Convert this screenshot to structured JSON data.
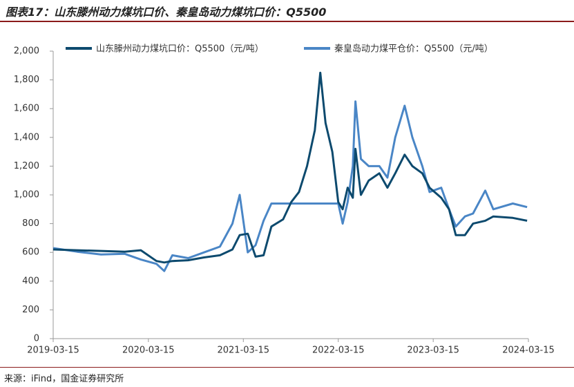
{
  "chart_data": {
    "type": "line",
    "title": "图表17：山东滕州动力煤坑口价、秦皇岛动力煤坑口价：Q5500",
    "source": "来源：iFind，国金证券研究所",
    "x": [
      "2019-03-15",
      "2019-06-15",
      "2019-09-15",
      "2019-12-15",
      "2020-02-15",
      "2020-04-15",
      "2020-05-15",
      "2020-06-15",
      "2020-08-15",
      "2020-10-15",
      "2020-12-15",
      "2021-02-01",
      "2021-03-01",
      "2021-04-01",
      "2021-05-01",
      "2021-06-01",
      "2021-07-01",
      "2021-08-15",
      "2021-09-15",
      "2021-10-15",
      "2021-11-15",
      "2021-12-15",
      "2022-01-05",
      "2022-01-25",
      "2022-02-20",
      "2022-03-15",
      "2022-04-01",
      "2022-04-20",
      "2022-05-10",
      "2022-05-20",
      "2022-06-10",
      "2022-07-10",
      "2022-08-20",
      "2022-09-20",
      "2022-10-20",
      "2022-11-25",
      "2022-12-25",
      "2023-02-01",
      "2023-03-01",
      "2023-04-15",
      "2023-05-15",
      "2023-06-10",
      "2023-07-15",
      "2023-08-15",
      "2023-10-01",
      "2023-11-01",
      "2024-01-15",
      "2024-03-10"
    ],
    "series": [
      {
        "name": "山东滕州动力煤坑口价：Q5500（元/吨）",
        "color": "#0d4a6e",
        "values": [
          620,
          615,
          610,
          605,
          615,
          540,
          530,
          540,
          545,
          565,
          580,
          620,
          720,
          730,
          570,
          580,
          780,
          830,
          950,
          1020,
          1200,
          1450,
          1850,
          1500,
          1300,
          950,
          900,
          1050,
          980,
          1320,
          1000,
          1100,
          1150,
          1050,
          1150,
          1280,
          1200,
          1150,
          1050,
          980,
          900,
          720,
          720,
          800,
          820,
          850,
          840,
          820
        ]
      },
      {
        "name": "秦皇岛动力煤平仓价：Q5500（元/吨）",
        "color": "#4a86c6",
        "values": [
          630,
          605,
          585,
          590,
          550,
          520,
          470,
          580,
          560,
          600,
          640,
          800,
          1000,
          600,
          650,
          820,
          940,
          940,
          940,
          940,
          940,
          940,
          940,
          940,
          940,
          940,
          800,
          950,
          1200,
          1650,
          1250,
          1200,
          1200,
          1120,
          1400,
          1620,
          1400,
          1200,
          1020,
          1050,
          900,
          780,
          850,
          870,
          1030,
          900,
          940,
          915
        ]
      }
    ],
    "xlim": [
      "2019-03-15",
      "2024-03-15"
    ],
    "xticks": [
      "2019-03-15",
      "2020-03-15",
      "2021-03-15",
      "2022-03-15",
      "2023-03-15",
      "2024-03-15"
    ],
    "ylim": [
      0,
      2000
    ],
    "yticks": [
      0,
      200,
      400,
      600,
      800,
      {
        "value": 1000,
        "label": "1,000"
      },
      {
        "value": 1200,
        "label": "1,200"
      },
      {
        "value": 1400,
        "label": "1,400"
      },
      {
        "value": 1600,
        "label": "1,600"
      },
      {
        "value": 1800,
        "label": "1,800"
      },
      {
        "value": 2000,
        "label": "2,000"
      }
    ]
  }
}
